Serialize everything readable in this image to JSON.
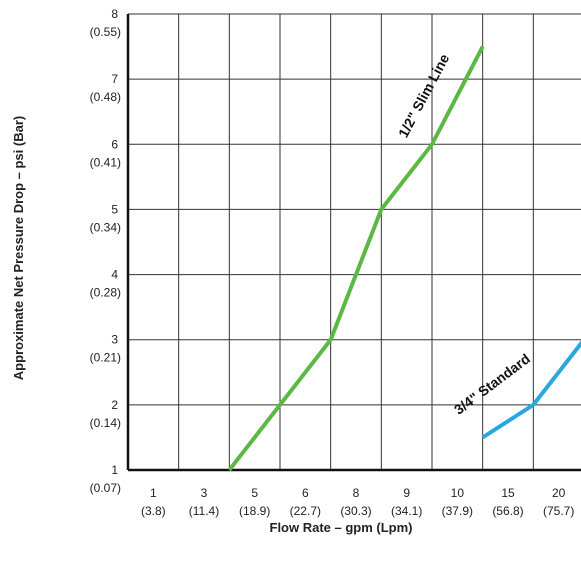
{
  "chart_data": {
    "type": "line",
    "xlabel": "Flow Rate – gpm (Lpm)",
    "ylabel": "Approximate Net Pressure Drop – psi (Bar)",
    "x_ticks": [
      {
        "gpm": "1",
        "lpm": "(3.8)"
      },
      {
        "gpm": "3",
        "lpm": "(11.4)"
      },
      {
        "gpm": "5",
        "lpm": "(18.9)"
      },
      {
        "gpm": "6",
        "lpm": "(22.7)"
      },
      {
        "gpm": "8",
        "lpm": "(30.3)"
      },
      {
        "gpm": "9",
        "lpm": "(34.1)"
      },
      {
        "gpm": "10",
        "lpm": "(37.9)"
      },
      {
        "gpm": "15",
        "lpm": "(56.8)"
      },
      {
        "gpm": "20",
        "lpm": "(75.7)"
      }
    ],
    "y_ticks": [
      {
        "psi": "1",
        "bar": "(0.07)"
      },
      {
        "psi": "2",
        "bar": "(0.14)"
      },
      {
        "psi": "3",
        "bar": "(0.21)"
      },
      {
        "psi": "4",
        "bar": "(0.28)"
      },
      {
        "psi": "5",
        "bar": "(0.34)"
      },
      {
        "psi": "6",
        "bar": "(0.41)"
      },
      {
        "psi": "7",
        "bar": "(0.48)"
      },
      {
        "psi": "8",
        "bar": "(0.55)"
      }
    ],
    "ylim": [
      1,
      8
    ],
    "grid": true,
    "series": [
      {
        "name": "1/2\" Slim Line",
        "color": "#5cb845",
        "x": [
          3,
          5,
          6,
          8,
          9,
          10
        ],
        "y": [
          1,
          2,
          3,
          5,
          6,
          7.5
        ]
      },
      {
        "name": "3/4\" Standard",
        "color": "#2aa7df",
        "x": [
          10,
          15,
          20
        ],
        "y": [
          1.5,
          2,
          3
        ]
      }
    ]
  }
}
